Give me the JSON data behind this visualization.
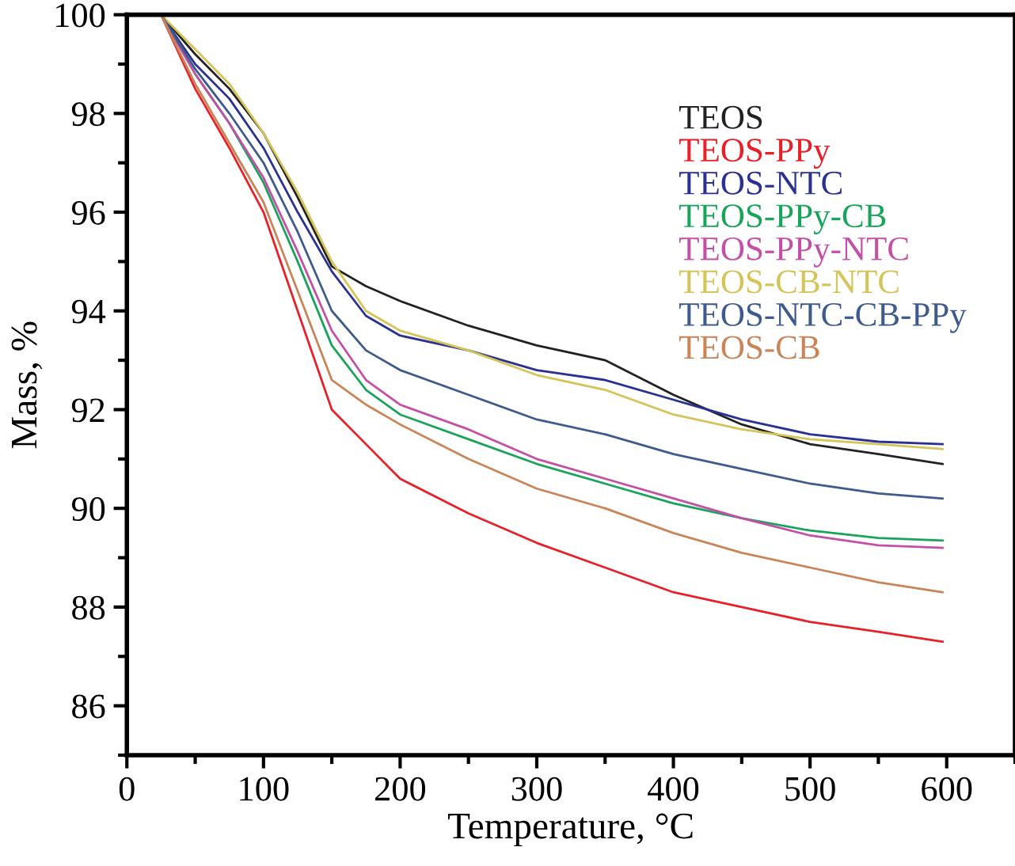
{
  "chart_data": {
    "type": "line",
    "xlabel": "Temperature, °C",
    "ylabel": "Mass, %",
    "x": [
      25,
      50,
      75,
      100,
      125,
      150,
      175,
      200,
      250,
      300,
      350,
      400,
      450,
      500,
      550,
      597
    ],
    "xlim": [
      0,
      650
    ],
    "xticks": [
      0,
      100,
      200,
      300,
      400,
      500,
      600
    ],
    "ylim": [
      85,
      100
    ],
    "yticks": [
      86,
      88,
      90,
      92,
      94,
      96,
      98,
      100
    ],
    "grid": false,
    "legend": "top right",
    "marker": "none",
    "line_style": "solid",
    "series": [
      {
        "name": "TEOS",
        "color": "#222222",
        "values": [
          100,
          99.2,
          98.5,
          97.6,
          96.3,
          94.9,
          94.5,
          94.2,
          93.7,
          93.3,
          93.0,
          92.3,
          91.7,
          91.3,
          91.1,
          90.9
        ]
      },
      {
        "name": "TEOS-PPy",
        "color": "#e8202a",
        "values": [
          100,
          98.5,
          97.3,
          96.0,
          94.0,
          92.0,
          91.3,
          90.6,
          89.9,
          89.3,
          88.8,
          88.3,
          88.0,
          87.7,
          87.5,
          87.3
        ]
      },
      {
        "name": "TEOS-NTC",
        "color": "#2b3192",
        "values": [
          100,
          99.0,
          98.3,
          97.3,
          96.0,
          94.8,
          93.9,
          93.5,
          93.2,
          92.8,
          92.6,
          92.2,
          91.8,
          91.5,
          91.35,
          91.3
        ]
      },
      {
        "name": "TEOS-PPy-CB",
        "color": "#1aa35a",
        "values": [
          100,
          98.8,
          97.8,
          96.6,
          95.0,
          93.3,
          92.4,
          91.9,
          91.4,
          90.9,
          90.5,
          90.1,
          89.8,
          89.55,
          89.4,
          89.35
        ]
      },
      {
        "name": "TEOS-PPy-NTC",
        "color": "#c44fa6",
        "values": [
          100,
          98.8,
          97.8,
          96.7,
          95.2,
          93.6,
          92.6,
          92.1,
          91.6,
          91.0,
          90.6,
          90.2,
          89.8,
          89.45,
          89.25,
          89.2
        ]
      },
      {
        "name": "TEOS-CB-NTC",
        "color": "#d4c45a",
        "values": [
          100,
          99.3,
          98.6,
          97.6,
          96.4,
          95.0,
          94.0,
          93.6,
          93.2,
          92.7,
          92.4,
          91.9,
          91.6,
          91.4,
          91.3,
          91.2
        ]
      },
      {
        "name": "TEOS-NTC-CB-PPy",
        "color": "#3f5a8c",
        "values": [
          100,
          98.9,
          98.0,
          97.0,
          95.6,
          94.0,
          93.2,
          92.8,
          92.3,
          91.8,
          91.5,
          91.1,
          90.8,
          90.5,
          90.3,
          90.2
        ]
      },
      {
        "name": "TEOS-CB",
        "color": "#c98558",
        "values": [
          100,
          98.6,
          97.4,
          96.2,
          94.4,
          92.6,
          92.1,
          91.7,
          91.0,
          90.4,
          90.0,
          89.5,
          89.1,
          88.8,
          88.5,
          88.3
        ]
      }
    ]
  }
}
